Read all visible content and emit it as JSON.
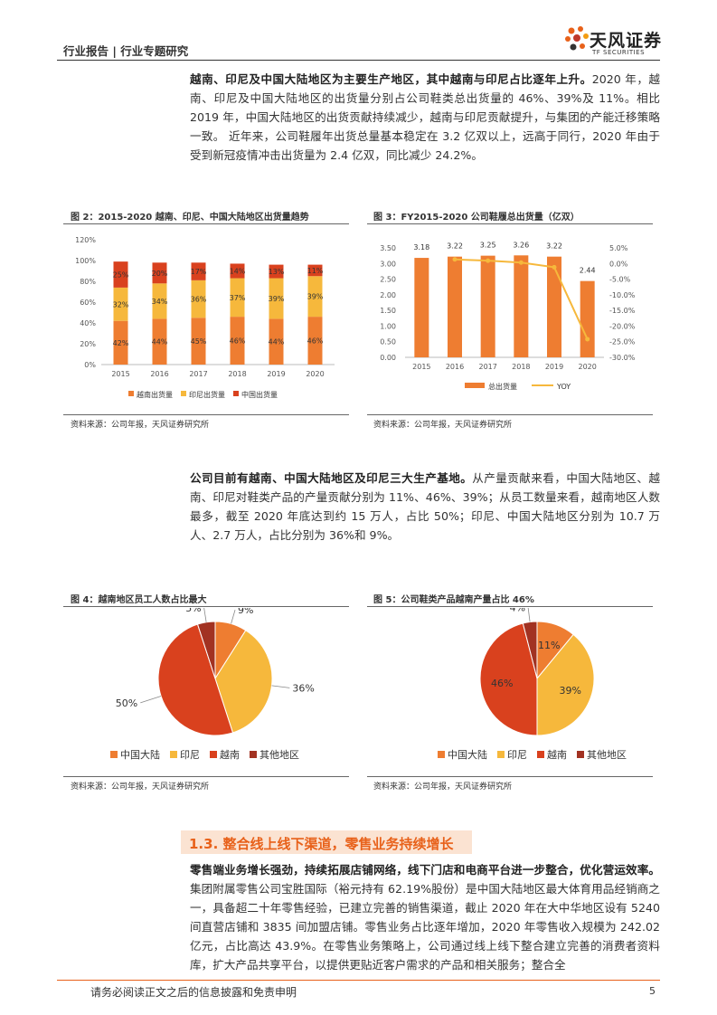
{
  "header": {
    "left": "行业报告 | 行业专题研究",
    "logo_cn": "天风证券",
    "logo_en": "TF SECURITIES"
  },
  "para1": {
    "bold": "越南、印尼及中国大陆地区为主要生产地区，其中越南与印尼占比逐年上升。",
    "text": "2020 年，越南、印尼及中国大陆地区的出货量分别占公司鞋类总出货量的 46%、39%及 11%。相比 2019 年，中国大陆地区的出货贡献持续减少，越南与印尼贡献提升，与集团的产能迁移策略一致。 近年来，公司鞋履年出货总量基本稳定在 3.2 亿双以上，远高于同行，2020 年由于受到新冠疫情冲击出货量为 2.4 亿双，同比减少 24.2%。"
  },
  "fig2": {
    "title": "图 2：2015-2020 越南、印尼、中国大陆地区出货量趋势",
    "source": "资料来源：公司年报，天风证券研究所"
  },
  "fig3": {
    "title": "图 3：FY2015-2020 公司鞋履总出货量（亿双）",
    "source": "资料来源：公司年报，天风证券研究所"
  },
  "para2": {
    "bold": "公司目前有越南、中国大陆地区及印尼三大生产基地。",
    "text": "从产量贡献来看，中国大陆地区、越南、印尼对鞋类产品的产量贡献分别为 11%、46%、39%；从员工数量来看，越南地区人数最多，截至 2020 年底达到约 15 万人，占比 50%；印尼、中国大陆地区分别为 10.7 万人、2.7 万人，占比分别为 36%和 9%。"
  },
  "fig4": {
    "title": "图 4：越南地区员工人数占比最大",
    "source": "资料来源：公司年报，天风证券研究所"
  },
  "fig5": {
    "title": "图 5：公司鞋类产品越南产量占比 46%",
    "source": "资料来源：公司年报，天风证券研究所"
  },
  "section": {
    "title": "1.3. 整合线上线下渠道，零售业务持续增长"
  },
  "para3": {
    "bold": "零售端业务增长强劲，持续拓展店铺网络，线下门店和电商平台进一步整合，优化营运效率。",
    "text": "集团附属零售公司宝胜国际（裕元持有 62.19%股份）是中国大陆地区最大体育用品经销商之一，具备超二十年零售经验，已建立完善的销售渠道，截止 2020 年在大中华地区设有 5240 间直营店铺和 3835 间加盟店铺。零售业务占比逐年增加，2020 年零售收入规模为 242.02 亿元，占比高达 43.9%。在零售业务策略上，公司通过线上线下整合建立完善的消费者资料库，扩大产品共享平台，以提供更贴近客户需求的产品和相关服务；整合全"
  },
  "footer": {
    "text": "请务必阅读正文之后的信息披露和免责申明",
    "page": "5"
  },
  "colors": {
    "vietnam": "#ee7d31",
    "indonesia": "#f6b83c",
    "china": "#d9411e",
    "other": "#a23222",
    "accent": "#e8611a"
  },
  "chart_data": [
    {
      "type": "bar",
      "stacked": true,
      "categories": [
        "2015",
        "2016",
        "2017",
        "2018",
        "2019",
        "2020"
      ],
      "series": [
        {
          "name": "越南出货量",
          "values": [
            42,
            44,
            45,
            46,
            44,
            46
          ],
          "color": "#ee7d31"
        },
        {
          "name": "印尼出货量",
          "values": [
            32,
            34,
            36,
            37,
            39,
            39
          ],
          "color": "#f6b83c"
        },
        {
          "name": "中国出货量",
          "values": [
            25,
            20,
            17,
            14,
            13,
            11
          ],
          "color": "#d9411e"
        }
      ],
      "ylim": [
        0,
        120
      ],
      "yticks": [
        "0%",
        "20%",
        "40%",
        "60%",
        "80%",
        "100%",
        "120%"
      ],
      "legend": "bottom"
    },
    {
      "type": "bar",
      "categories": [
        "2015",
        "2016",
        "2017",
        "2018",
        "2019",
        "2020"
      ],
      "series": [
        {
          "name": "总出货量",
          "values": [
            3.18,
            3.22,
            3.25,
            3.26,
            3.22,
            2.44
          ],
          "labels": [
            "3.18",
            "3.22",
            "3.25",
            "3.26",
            "3.22",
            "2.44"
          ],
          "color": "#ee7d31",
          "axis": "left"
        },
        {
          "name": "YOY",
          "type": "line",
          "values": [
            null,
            1.3,
            0.9,
            0.3,
            -1.2,
            -24.2
          ],
          "color": "#f6b83c",
          "axis": "right"
        }
      ],
      "ylim": [
        0,
        3.5
      ],
      "yticks": [
        "0.00",
        "0.50",
        "1.00",
        "1.50",
        "2.00",
        "2.50",
        "3.00",
        "3.50"
      ],
      "y2lim": [
        -30,
        5
      ],
      "y2ticks": [
        "5.0%",
        "0.0%",
        "-5.0%",
        "-10.0%",
        "-15.0%",
        "-20.0%",
        "-25.0%",
        "-30.0%"
      ],
      "legend": "bottom"
    },
    {
      "type": "pie",
      "categories": [
        "中国大陆",
        "印尼",
        "越南",
        "其他地区"
      ],
      "values": [
        9,
        36,
        50,
        5
      ],
      "labels": [
        "9%",
        "36%",
        "50%",
        "5%"
      ],
      "colors": [
        "#ee7d31",
        "#f6b83c",
        "#d9411e",
        "#a23222"
      ],
      "legend": "bottom"
    },
    {
      "type": "pie",
      "categories": [
        "中国大陆",
        "印尼",
        "越南",
        "其他地区"
      ],
      "values": [
        11,
        39,
        46,
        4
      ],
      "labels": [
        "11%",
        "39%",
        "46%",
        "4%"
      ],
      "colors": [
        "#ee7d31",
        "#f6b83c",
        "#d9411e",
        "#a23222"
      ],
      "legend": "bottom"
    }
  ]
}
